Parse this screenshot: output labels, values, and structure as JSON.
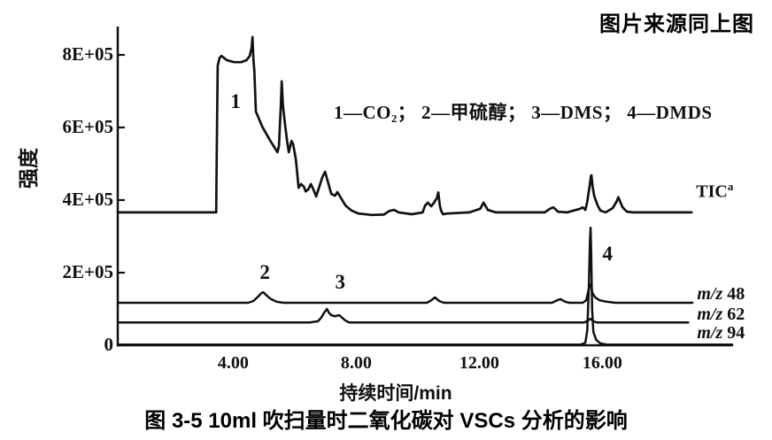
{
  "header": {
    "source_note": "图片来源同上图"
  },
  "caption": "图 3-5  10ml 吹扫量时二氧化碳对 VSCs 分析的影响",
  "chart_data": {
    "type": "line",
    "xlabel": "持续时间/min",
    "ylabel": "强度",
    "legend_line": "1—CO₂； 2—甲硫醇； 3—DMS； 4—DMDS",
    "grid": false,
    "xlim": [
      0.25,
      20.25
    ],
    "ylim": [
      0,
      8.78
    ],
    "y_unit": "1E+05 counts",
    "yticks": [
      {
        "v": 8,
        "label": "8E+05"
      },
      {
        "v": 6,
        "label": "6E+05"
      },
      {
        "v": 4,
        "label": "4E+05"
      },
      {
        "v": 2,
        "label": "2E+05"
      },
      {
        "v": 0,
        "label": "0"
      }
    ],
    "xticks": [
      {
        "t": 4,
        "label": "4.00"
      },
      {
        "t": 8,
        "label": "8.00"
      },
      {
        "t": 12,
        "label": "12.00"
      },
      {
        "t": 16,
        "label": "16.00"
      }
    ],
    "annotations": [
      {
        "label": "1",
        "t": 4.08,
        "v": 6.68
      },
      {
        "label": "2",
        "t": 5.03,
        "v": 1.98
      },
      {
        "label": "3",
        "t": 7.48,
        "v": 1.71
      },
      {
        "label": "4",
        "t": 16.17,
        "v": 2.49
      }
    ],
    "series": [
      {
        "id": "tic",
        "name": "TIC",
        "label": {
          "main": "TIC",
          "sup": "a"
        },
        "label_pos": [
          19.05,
          4.27
        ],
        "points": [
          [
            0.26,
            3.66
          ],
          [
            3.45,
            3.66
          ],
          [
            3.47,
            5.5
          ],
          [
            3.5,
            7.7
          ],
          [
            3.56,
            7.92
          ],
          [
            3.62,
            7.97
          ],
          [
            3.8,
            7.85
          ],
          [
            4.03,
            7.8
          ],
          [
            4.26,
            7.8
          ],
          [
            4.43,
            7.85
          ],
          [
            4.54,
            7.97
          ],
          [
            4.6,
            8.2
          ],
          [
            4.63,
            8.49
          ],
          [
            4.66,
            7.9
          ],
          [
            4.69,
            7.56
          ],
          [
            4.74,
            6.44
          ],
          [
            4.95,
            6.02
          ],
          [
            5.21,
            5.63
          ],
          [
            5.44,
            5.32
          ],
          [
            5.49,
            5.49
          ],
          [
            5.55,
            6.6
          ],
          [
            5.58,
            7.27
          ],
          [
            5.62,
            6.6
          ],
          [
            5.67,
            6.22
          ],
          [
            5.75,
            5.66
          ],
          [
            5.81,
            5.32
          ],
          [
            5.9,
            5.63
          ],
          [
            5.95,
            5.54
          ],
          [
            6.04,
            5.12
          ],
          [
            6.13,
            4.34
          ],
          [
            6.21,
            4.44
          ],
          [
            6.3,
            4.37
          ],
          [
            6.36,
            4.24
          ],
          [
            6.44,
            4.29
          ],
          [
            6.53,
            4.44
          ],
          [
            6.62,
            4.27
          ],
          [
            6.7,
            4.1
          ],
          [
            6.79,
            4.34
          ],
          [
            6.9,
            4.63
          ],
          [
            6.99,
            4.78
          ],
          [
            7.08,
            4.51
          ],
          [
            7.19,
            4.17
          ],
          [
            7.31,
            4.12
          ],
          [
            7.39,
            4.22
          ],
          [
            7.51,
            4.05
          ],
          [
            7.65,
            3.85
          ],
          [
            7.85,
            3.71
          ],
          [
            8.08,
            3.63
          ],
          [
            8.51,
            3.59
          ],
          [
            8.9,
            3.6
          ],
          [
            9.08,
            3.7
          ],
          [
            9.23,
            3.73
          ],
          [
            9.38,
            3.66
          ],
          [
            9.81,
            3.61
          ],
          [
            10.16,
            3.66
          ],
          [
            10.24,
            3.85
          ],
          [
            10.33,
            3.93
          ],
          [
            10.44,
            3.83
          ],
          [
            10.53,
            3.93
          ],
          [
            10.62,
            4.05
          ],
          [
            10.67,
            4.21
          ],
          [
            10.72,
            3.85
          ],
          [
            10.76,
            3.71
          ],
          [
            10.82,
            3.61
          ],
          [
            10.96,
            3.63
          ],
          [
            11.68,
            3.66
          ],
          [
            12.03,
            3.76
          ],
          [
            12.14,
            3.93
          ],
          [
            12.28,
            3.73
          ],
          [
            12.54,
            3.66
          ],
          [
            14.13,
            3.66
          ],
          [
            14.3,
            3.76
          ],
          [
            14.41,
            3.8
          ],
          [
            14.56,
            3.68
          ],
          [
            14.85,
            3.66
          ],
          [
            15.28,
            3.76
          ],
          [
            15.36,
            3.8
          ],
          [
            15.45,
            3.73
          ],
          [
            15.51,
            3.95
          ],
          [
            15.59,
            4.4
          ],
          [
            15.63,
            4.66
          ],
          [
            15.65,
            4.68
          ],
          [
            15.68,
            4.4
          ],
          [
            15.74,
            4.1
          ],
          [
            15.85,
            3.85
          ],
          [
            15.94,
            3.71
          ],
          [
            16.11,
            3.66
          ],
          [
            16.34,
            3.78
          ],
          [
            16.46,
            3.95
          ],
          [
            16.52,
            4.08
          ],
          [
            16.57,
            3.98
          ],
          [
            16.66,
            3.8
          ],
          [
            16.8,
            3.68
          ],
          [
            17.0,
            3.66
          ],
          [
            18.9,
            3.66
          ]
        ]
      },
      {
        "id": "mz48",
        "name": "m/z 48",
        "label": {
          "italic": "m/z",
          "num": "48"
        },
        "label_pos": [
          19.08,
          1.39
        ],
        "points": [
          [
            0.26,
            1.17
          ],
          [
            4.49,
            1.17
          ],
          [
            4.66,
            1.22
          ],
          [
            4.81,
            1.34
          ],
          [
            4.92,
            1.44
          ],
          [
            4.98,
            1.46
          ],
          [
            5.09,
            1.37
          ],
          [
            5.23,
            1.27
          ],
          [
            5.41,
            1.2
          ],
          [
            5.64,
            1.17
          ],
          [
            10.3,
            1.17
          ],
          [
            10.44,
            1.24
          ],
          [
            10.56,
            1.32
          ],
          [
            10.7,
            1.22
          ],
          [
            10.85,
            1.17
          ],
          [
            14.36,
            1.17
          ],
          [
            14.53,
            1.24
          ],
          [
            14.64,
            1.27
          ],
          [
            14.79,
            1.2
          ],
          [
            14.93,
            1.17
          ],
          [
            15.36,
            1.17
          ],
          [
            15.48,
            1.24
          ],
          [
            15.57,
            1.59
          ],
          [
            15.62,
            1.68
          ],
          [
            15.68,
            1.44
          ],
          [
            15.77,
            1.32
          ],
          [
            15.91,
            1.24
          ],
          [
            16.14,
            1.2
          ],
          [
            16.43,
            1.17
          ],
          [
            18.93,
            1.17
          ]
        ]
      },
      {
        "id": "mz62",
        "name": "m/z 62",
        "label": {
          "italic": "m/z",
          "num": "62"
        },
        "label_pos": [
          19.08,
          0.83
        ],
        "points": [
          [
            0.26,
            0.63
          ],
          [
            6.5,
            0.63
          ],
          [
            6.76,
            0.66
          ],
          [
            6.88,
            0.78
          ],
          [
            6.96,
            0.9
          ],
          [
            7.05,
            1.0
          ],
          [
            7.11,
            0.9
          ],
          [
            7.19,
            0.83
          ],
          [
            7.31,
            0.8
          ],
          [
            7.45,
            0.83
          ],
          [
            7.54,
            0.76
          ],
          [
            7.65,
            0.68
          ],
          [
            7.77,
            0.63
          ],
          [
            15.42,
            0.63
          ],
          [
            15.53,
            0.68
          ],
          [
            15.62,
            0.73
          ],
          [
            15.71,
            0.66
          ],
          [
            15.82,
            0.63
          ],
          [
            18.79,
            0.63
          ]
        ]
      },
      {
        "id": "mz94",
        "name": "m/z 94",
        "label": {
          "italic": "m/z",
          "num": "94"
        },
        "label_pos": [
          19.08,
          0.32
        ],
        "points": [
          [
            0.26,
            0.02
          ],
          [
            15.3,
            0.02
          ],
          [
            15.45,
            0.07
          ],
          [
            15.51,
            0.4
          ],
          [
            15.56,
            1.5
          ],
          [
            15.6,
            2.9
          ],
          [
            15.62,
            3.24
          ],
          [
            15.64,
            2.5
          ],
          [
            15.67,
            1.0
          ],
          [
            15.71,
            0.37
          ],
          [
            15.8,
            0.15
          ],
          [
            15.94,
            0.05
          ],
          [
            16.14,
            0.02
          ],
          [
            20.22,
            0.02
          ]
        ]
      }
    ]
  }
}
